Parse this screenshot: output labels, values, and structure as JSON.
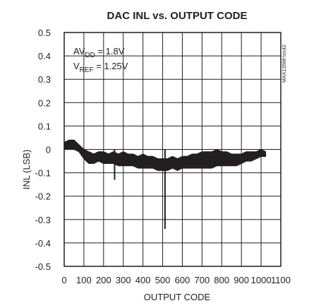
{
  "chart_data": {
    "type": "line",
    "title": "DAC INL vs. OUTPUT CODE",
    "xlabel": "OUTPUT CODE",
    "ylabel": "INL (LSB)",
    "xlim": [
      0,
      1100
    ],
    "ylim": [
      -0.5,
      0.5
    ],
    "x_ticks": [
      0,
      100,
      200,
      300,
      400,
      500,
      600,
      700,
      800,
      900,
      1000,
      1100
    ],
    "y_ticks": [
      0.5,
      0.4,
      0.3,
      0.2,
      0.1,
      0,
      -0.1,
      -0.2,
      -0.3,
      -0.4,
      -0.5
    ],
    "x_tick_labels": [
      "0",
      "100",
      "200",
      "300",
      "400",
      "500",
      "600",
      "700",
      "800",
      "900",
      "1000",
      "1100"
    ],
    "y_tick_labels": [
      "0.5",
      "0.4",
      "0.3",
      "0.2",
      "0.1",
      "0",
      "-0.1",
      "-0.2",
      "-0.3",
      "-0.4",
      "-0.5"
    ],
    "grid": true,
    "annotations": {
      "avdd_main": "AV",
      "avdd_sub": "DD",
      "avdd_value": " = 1.8V",
      "vref_main": "V",
      "vref_sub": "REF",
      "vref_value": " = 1.25V",
      "figure_code": "MAX13588 toc42"
    },
    "series": [
      {
        "color": "#231f20",
        "x": [
          0,
          25,
          50,
          75,
          100,
          125,
          150,
          175,
          200,
          225,
          250,
          275,
          300,
          325,
          350,
          375,
          400,
          425,
          450,
          475,
          500,
          525,
          550,
          575,
          600,
          625,
          650,
          675,
          700,
          725,
          750,
          775,
          800,
          825,
          850,
          875,
          900,
          925,
          950,
          975,
          1000,
          1023
        ],
        "y_upper": [
          0.03,
          0.04,
          0.04,
          0.02,
          0.0,
          -0.01,
          -0.02,
          -0.01,
          -0.01,
          -0.02,
          -0.01,
          -0.02,
          -0.01,
          -0.02,
          -0.02,
          -0.03,
          -0.02,
          -0.03,
          -0.03,
          -0.04,
          -0.04,
          -0.04,
          -0.03,
          -0.04,
          -0.03,
          -0.03,
          -0.02,
          -0.02,
          -0.01,
          -0.01,
          -0.01,
          0.0,
          -0.01,
          -0.01,
          -0.02,
          -0.02,
          -0.02,
          -0.01,
          -0.01,
          -0.01,
          0.0,
          -0.01
        ],
        "y_lower": [
          0.0,
          0.0,
          0.0,
          -0.01,
          -0.04,
          -0.06,
          -0.06,
          -0.05,
          -0.06,
          -0.06,
          -0.06,
          -0.07,
          -0.07,
          -0.07,
          -0.07,
          -0.08,
          -0.08,
          -0.08,
          -0.08,
          -0.09,
          -0.09,
          -0.09,
          -0.08,
          -0.09,
          -0.08,
          -0.08,
          -0.08,
          -0.08,
          -0.08,
          -0.08,
          -0.08,
          -0.07,
          -0.07,
          -0.07,
          -0.07,
          -0.07,
          -0.06,
          -0.05,
          -0.05,
          -0.04,
          -0.03,
          -0.03
        ],
        "spikes": [
          {
            "x": 256,
            "y": -0.13
          },
          {
            "x": 512,
            "y": -0.34
          }
        ]
      }
    ]
  }
}
